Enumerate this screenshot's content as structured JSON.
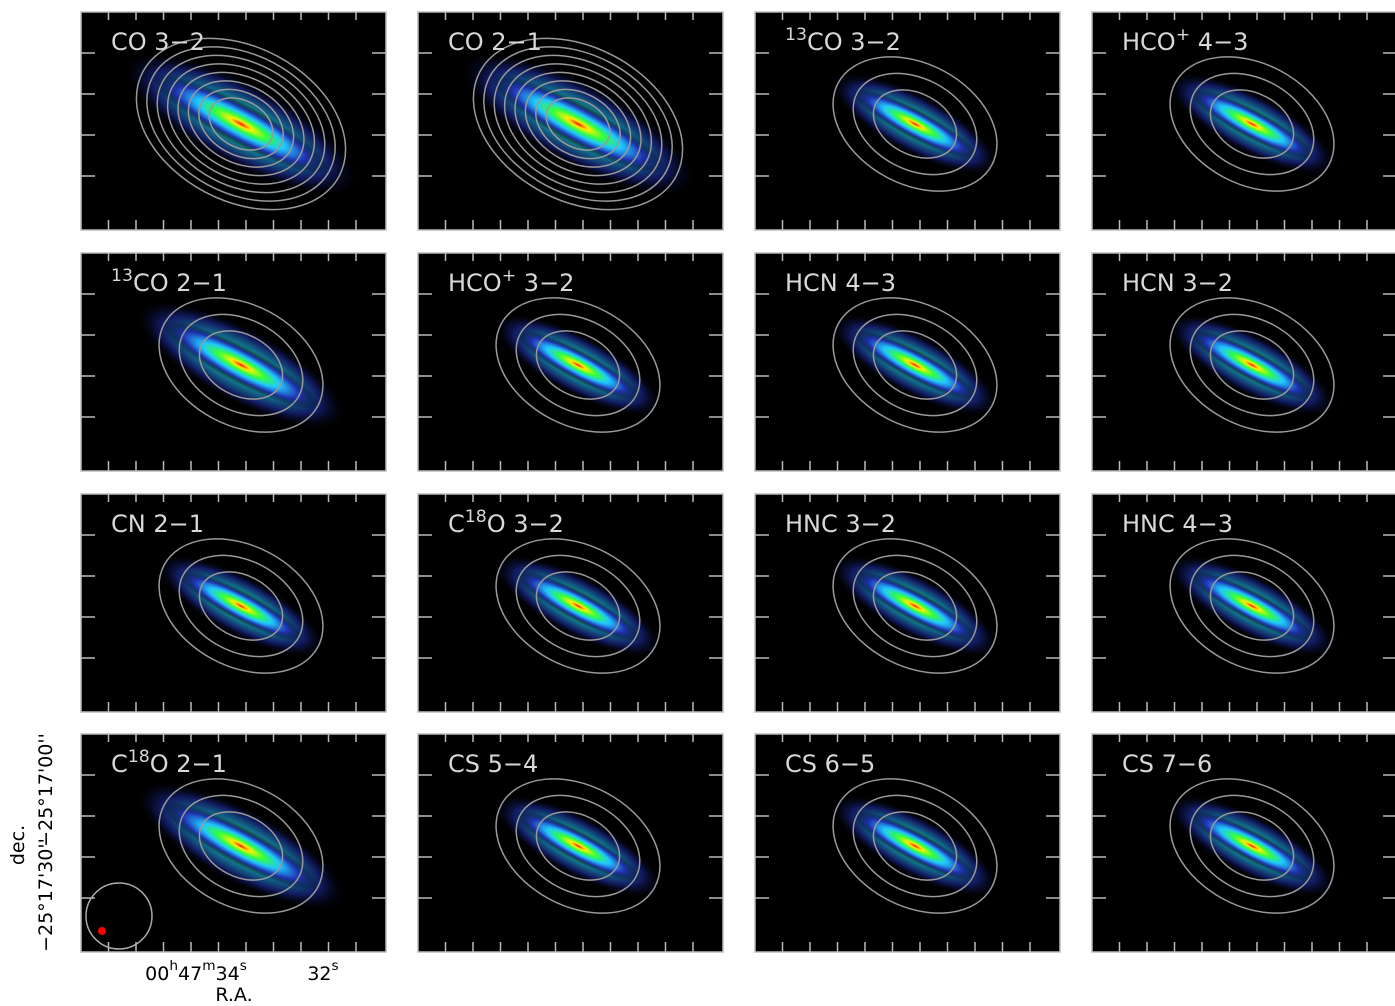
{
  "panels": [
    {
      "label": [
        {
          "text": "CO 3−2"
        }
      ]
    },
    {
      "label": [
        {
          "text": "CO 2−1"
        }
      ]
    },
    {
      "label": [
        {
          "sup": "13"
        },
        {
          "text": "CO 3−2"
        }
      ]
    },
    {
      "label": [
        {
          "text": "HCO"
        },
        {
          "sup": "+"
        },
        {
          "text": " 4−3"
        }
      ]
    },
    {
      "label": [
        {
          "sup": "13"
        },
        {
          "text": "CO 2−1"
        }
      ]
    },
    {
      "label": [
        {
          "text": "HCO"
        },
        {
          "sup": "+"
        },
        {
          "text": " 3−2"
        }
      ]
    },
    {
      "label": [
        {
          "text": "HCN 4−3"
        }
      ]
    },
    {
      "label": [
        {
          "text": "HCN 3−2"
        }
      ]
    },
    {
      "label": [
        {
          "text": "CN 2−1"
        }
      ]
    },
    {
      "label": [
        {
          "text": "C"
        },
        {
          "sup": "18"
        },
        {
          "text": "O 3−2"
        }
      ]
    },
    {
      "label": [
        {
          "text": "HNC 3−2"
        }
      ]
    },
    {
      "label": [
        {
          "text": "HNC 4−3"
        }
      ]
    },
    {
      "label": [
        {
          "text": "C"
        },
        {
          "sup": "18"
        },
        {
          "text": "O 2−1"
        }
      ]
    },
    {
      "label": [
        {
          "text": "CS 5−4"
        }
      ]
    },
    {
      "label": [
        {
          "text": "CS 6−5"
        }
      ]
    },
    {
      "label": [
        {
          "text": "CS 7−6"
        }
      ]
    }
  ],
  "axes": {
    "y_label": "dec.",
    "y_ticks": [
      "−25°17'00''",
      "−25°17'30''"
    ],
    "x_label": "R.A.",
    "x_ticks": [
      [
        {
          "text": "00"
        },
        {
          "sup": "h"
        },
        {
          "text": "47"
        },
        {
          "sup": "m"
        },
        {
          "text": "34"
        },
        {
          "sup": "s"
        }
      ],
      [
        {
          "text": "32"
        },
        {
          "sup": "s"
        }
      ]
    ]
  }
}
